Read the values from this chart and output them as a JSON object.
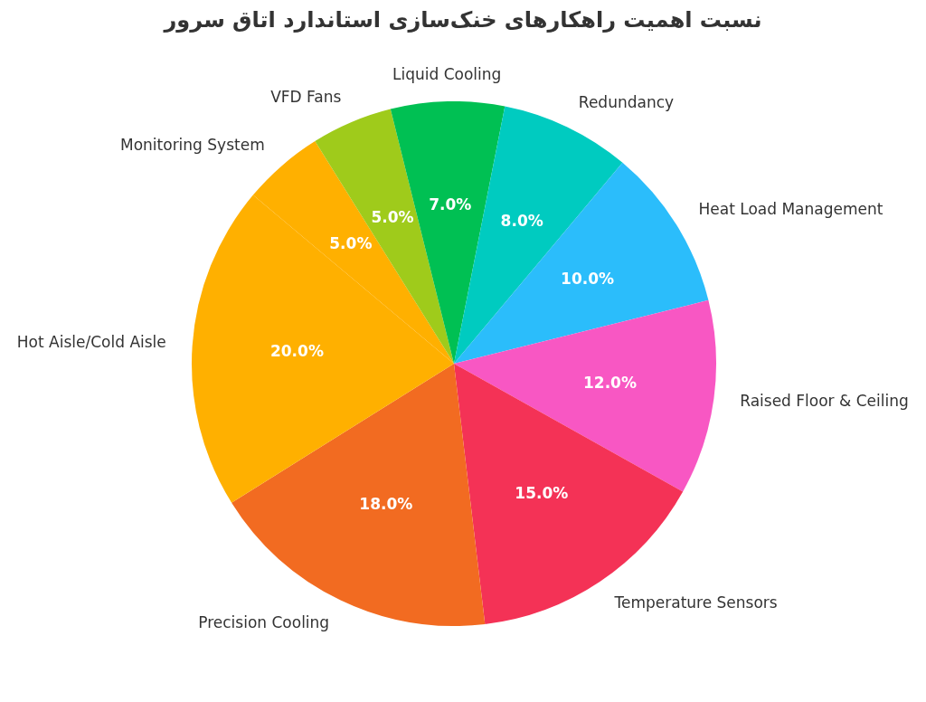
{
  "chart_data": {
    "type": "pie",
    "title": "نسبت اهمیت راهکارهای خنک‌سازی استاندارد اتاق سرور",
    "categories": [
      "Monitoring System",
      "VFD Fans",
      "Liquid Cooling",
      "Redundancy",
      "Heat Load Management",
      "Raised Floor & Ceiling",
      "Temperature Sensors",
      "Precision Cooling",
      "Hot Aisle/Cold Aisle"
    ],
    "values": [
      5,
      5,
      7,
      8,
      10,
      12,
      15,
      18,
      20
    ],
    "colors": [
      "#ffb000",
      "#9fcb1b",
      "#00c053",
      "#00cbc0",
      "#2bbdfb",
      "#f857c3",
      "#f43256",
      "#f26b21",
      "#ffb000"
    ],
    "value_labels": [
      "5.0%",
      "5.0%",
      "7.0%",
      "8.0%",
      "10.0%",
      "12.0%",
      "15.0%",
      "18.0%",
      "20.0%"
    ],
    "legend": false
  }
}
